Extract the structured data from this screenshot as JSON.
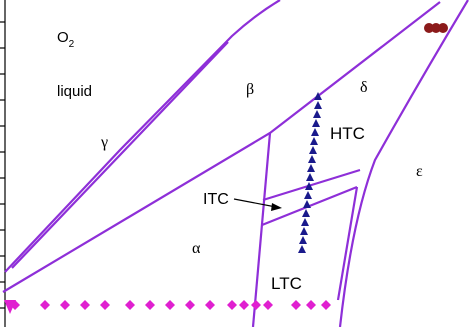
{
  "labels": {
    "o2_main": "O",
    "o2_sub": "2",
    "liquid": "liquid",
    "gamma": "γ",
    "beta": "β",
    "delta": "δ",
    "htc": "HTC",
    "epsilon": "ε",
    "itc": "ITC",
    "alpha": "α",
    "ltc": "LTC"
  }
}
